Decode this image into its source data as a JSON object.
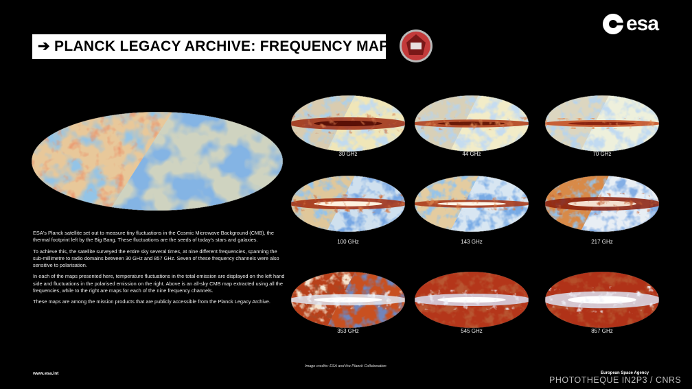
{
  "header": {
    "title": "➔ PLANCK LEGACY ARCHIVE: FREQUENCY MAPS",
    "logo": "esa"
  },
  "body": {
    "paragraphs": [
      "ESA's Planck satellite set out to measure tiny fluctuations in the Cosmic Microwave Background (CMB), the thermal footprint left by the Big Bang. These fluctuations are the seeds of today's stars and galaxies.",
      "To achieve this, the satellite surveyed the entire sky several times, at nine different frequencies, spanning the sub-millimetre to radio domains between 30 GHz and 857 GHz. Seven of these frequency channels were also sensitive to polarisation.",
      "In each of the maps presented here, temperature fluctuations in the total emission are displayed on the left hand side and fluctuations in the polarised emission on the right. Above is an all-sky CMB map extracted using all the frequencies, while to the right are maps for each of the nine frequency channels.",
      "These maps are among the mission products that are publicly accessible from the Planck Legacy Archive."
    ]
  },
  "maps": [
    {
      "label": "30 GHz"
    },
    {
      "label": "44 GHz"
    },
    {
      "label": "70 GHz"
    },
    {
      "label": "100 GHz"
    },
    {
      "label": "143 GHz"
    },
    {
      "label": "217 GHz"
    },
    {
      "label": "353 GHz"
    },
    {
      "label": "545 GHz"
    },
    {
      "label": "857 GHz"
    }
  ],
  "footer": {
    "website": "www.esa.int",
    "credits": "Image credits: ESA and the Planck Collaboration",
    "agency": "European Space Agency",
    "watermark": "PHOTOTHEQUE IN2P3 / CNRS"
  }
}
